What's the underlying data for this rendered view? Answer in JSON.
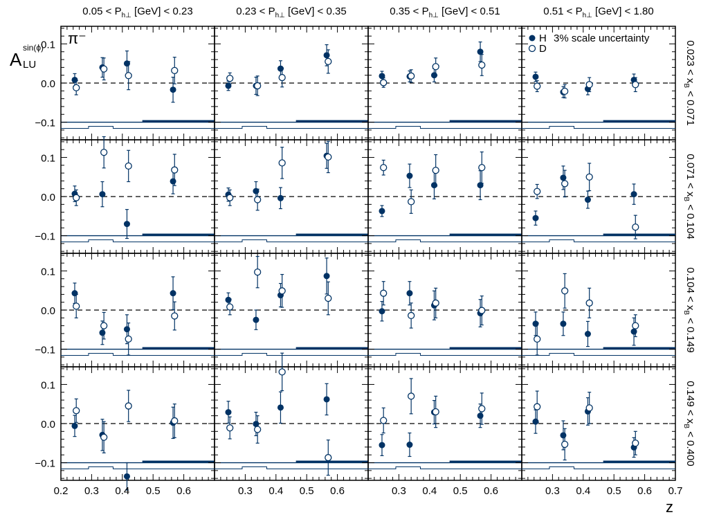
{
  "figure": {
    "hadron_label": "π⁻",
    "y_axis_title": "A",
    "y_axis_superscript": "sin(ϕ)",
    "y_axis_subscript": "LU",
    "x_axis_title": "z",
    "legend": {
      "h_label": "H",
      "d_label": "D",
      "scale_note": "3% scale uncertainty"
    },
    "colors": {
      "primary": "#003264"
    }
  },
  "chart_data": {
    "type": "scatter",
    "layout": "4x4 grid, shared axes",
    "xlim": [
      0.2,
      0.7
    ],
    "ylim": [
      -0.145,
      0.145
    ],
    "x_ticks": [
      "0.2",
      "0.3",
      "0.4",
      "0.5",
      "0.6",
      "0.7"
    ],
    "y_ticks": [
      "−0.1",
      "0.0",
      "0.1"
    ],
    "column_headers": [
      {
        "lo": "0.05",
        "hi": "0.23"
      },
      {
        "lo": "0.23",
        "hi": "0.35"
      },
      {
        "lo": "0.35",
        "hi": "0.51"
      },
      {
        "lo": "0.51",
        "hi": "1.80"
      }
    ],
    "row_headers": [
      {
        "lo": "0.023",
        "hi": "0.071"
      },
      {
        "lo": "0.071",
        "hi": "0.104"
      },
      {
        "lo": "0.104",
        "hi": "0.149"
      },
      {
        "lo": "0.149",
        "hi": "0.400"
      }
    ],
    "series_names": [
      "H",
      "D"
    ],
    "panels": [
      [
        {
          "H": [
            [
              0.245,
              0.008,
              0.016
            ],
            [
              0.335,
              0.04,
              0.025
            ],
            [
              0.415,
              0.05,
              0.032
            ],
            [
              0.565,
              -0.017,
              0.032
            ]
          ],
          "D": [
            [
              0.25,
              -0.012,
              0.018
            ],
            [
              0.34,
              0.036,
              0.028
            ],
            [
              0.42,
              0.019,
              0.036
            ],
            [
              0.57,
              0.032,
              0.034
            ]
          ]
        },
        {
          "H": [
            [
              0.245,
              -0.007,
              0.012
            ],
            [
              0.335,
              -0.007,
              0.022
            ],
            [
              0.415,
              0.037,
              0.02
            ],
            [
              0.565,
              0.071,
              0.027
            ]
          ],
          "D": [
            [
              0.25,
              0.012,
              0.014
            ],
            [
              0.34,
              -0.007,
              0.025
            ],
            [
              0.42,
              0.014,
              0.024
            ],
            [
              0.57,
              0.055,
              0.03
            ]
          ]
        },
        {
          "H": [
            [
              0.245,
              0.018,
              0.012
            ],
            [
              0.335,
              0.017,
              0.014
            ],
            [
              0.415,
              0.02,
              0.017
            ],
            [
              0.565,
              0.08,
              0.025
            ]
          ],
          "D": [
            [
              0.25,
              0.001,
              0.012
            ],
            [
              0.34,
              0.018,
              0.016
            ],
            [
              0.42,
              0.042,
              0.022
            ],
            [
              0.57,
              0.046,
              0.027
            ]
          ]
        },
        {
          "H": [
            [
              0.245,
              0.016,
              0.012
            ],
            [
              0.335,
              -0.023,
              0.014
            ],
            [
              0.415,
              -0.015,
              0.015
            ],
            [
              0.565,
              0.008,
              0.015
            ]
          ],
          "D": [
            [
              0.25,
              -0.008,
              0.014
            ],
            [
              0.34,
              -0.021,
              0.017
            ],
            [
              0.42,
              -0.004,
              0.018
            ],
            [
              0.57,
              -0.004,
              0.018
            ]
          ]
        }
      ],
      [
        {
          "H": [
            [
              0.245,
              0.007,
              0.02
            ],
            [
              0.335,
              0.006,
              0.032
            ],
            [
              0.415,
              -0.07,
              0.037
            ],
            [
              0.565,
              0.039,
              0.032
            ]
          ],
          "D": [
            [
              0.25,
              -0.003,
              0.02
            ],
            [
              0.34,
              0.113,
              0.04
            ],
            [
              0.42,
              0.078,
              0.04
            ],
            [
              0.57,
              0.068,
              0.04
            ]
          ]
        },
        {
          "H": [
            [
              0.245,
              0.005,
              0.017
            ],
            [
              0.335,
              0.014,
              0.024
            ],
            [
              0.415,
              -0.004,
              0.027
            ],
            [
              0.565,
              0.104,
              0.032
            ]
          ],
          "D": [
            [
              0.25,
              -0.003,
              0.02
            ],
            [
              0.34,
              -0.008,
              0.027
            ],
            [
              0.42,
              0.086,
              0.04
            ],
            [
              0.57,
              0.101,
              0.04
            ]
          ]
        },
        {
          "H": [
            [
              0.245,
              -0.037,
              0.014
            ],
            [
              0.335,
              0.053,
              0.03
            ],
            [
              0.415,
              0.029,
              0.035
            ],
            [
              0.565,
              0.029,
              0.037
            ]
          ],
          "D": [
            [
              0.25,
              0.074,
              0.019
            ],
            [
              0.34,
              -0.013,
              0.03
            ],
            [
              0.42,
              0.067,
              0.04
            ],
            [
              0.57,
              0.074,
              0.04
            ]
          ]
        },
        {
          "H": [
            [
              0.245,
              -0.055,
              0.018
            ],
            [
              0.335,
              0.048,
              0.03
            ],
            [
              0.415,
              -0.008,
              0.022
            ],
            [
              0.565,
              0.006,
              0.026
            ]
          ],
          "D": [
            [
              0.25,
              0.013,
              0.018
            ],
            [
              0.34,
              0.033,
              0.034
            ],
            [
              0.42,
              0.05,
              0.035
            ],
            [
              0.57,
              -0.078,
              0.03
            ]
          ]
        }
      ],
      [
        {
          "H": [
            [
              0.245,
              0.043,
              0.026
            ],
            [
              0.335,
              -0.058,
              0.03
            ],
            [
              0.415,
              -0.049,
              0.037
            ],
            [
              0.565,
              0.043,
              0.042
            ]
          ],
          "D": [
            [
              0.25,
              0.01,
              0.03
            ],
            [
              0.34,
              -0.04,
              0.034
            ],
            [
              0.42,
              -0.074,
              0.041
            ],
            [
              0.57,
              -0.015,
              0.036
            ]
          ]
        },
        {
          "H": [
            [
              0.245,
              0.026,
              0.018
            ],
            [
              0.335,
              -0.025,
              0.025
            ],
            [
              0.415,
              0.038,
              0.03
            ],
            [
              0.565,
              0.087,
              0.046
            ]
          ],
          "D": [
            [
              0.25,
              0.008,
              0.02
            ],
            [
              0.34,
              0.097,
              0.04
            ],
            [
              0.42,
              0.049,
              0.042
            ],
            [
              0.57,
              0.03,
              0.042
            ]
          ]
        },
        {
          "H": [
            [
              0.245,
              -0.003,
              0.025
            ],
            [
              0.335,
              0.043,
              0.03
            ],
            [
              0.415,
              0.012,
              0.037
            ],
            [
              0.565,
              -0.008,
              0.035
            ]
          ],
          "D": [
            [
              0.25,
              0.043,
              0.03
            ],
            [
              0.34,
              -0.014,
              0.032
            ],
            [
              0.42,
              0.018,
              0.038
            ],
            [
              0.57,
              -0.001,
              0.037
            ]
          ]
        },
        {
          "H": [
            [
              0.245,
              -0.035,
              0.03
            ],
            [
              0.335,
              -0.035,
              0.03
            ],
            [
              0.415,
              -0.061,
              0.032
            ],
            [
              0.565,
              -0.055,
              0.035
            ]
          ],
          "D": [
            [
              0.25,
              -0.074,
              0.041
            ],
            [
              0.34,
              0.049,
              0.044
            ],
            [
              0.42,
              0.018,
              0.038
            ],
            [
              0.57,
              -0.04,
              0.028
            ]
          ]
        }
      ],
      [
        {
          "H": [
            [
              0.245,
              -0.006,
              0.027
            ],
            [
              0.335,
              -0.029,
              0.04
            ],
            [
              0.415,
              -0.135,
              0.035
            ],
            [
              0.565,
              0.002,
              0.04
            ]
          ],
          "D": [
            [
              0.25,
              0.033,
              0.03
            ],
            [
              0.34,
              -0.035,
              0.04
            ],
            [
              0.42,
              0.045,
              0.04
            ],
            [
              0.57,
              0.007,
              0.043
            ]
          ]
        },
        {
          "H": [
            [
              0.245,
              0.029,
              0.028
            ],
            [
              0.335,
              -0.001,
              0.03
            ],
            [
              0.415,
              0.041,
              0.04
            ],
            [
              0.565,
              0.062,
              0.04
            ]
          ],
          "D": [
            [
              0.25,
              -0.011,
              0.028
            ],
            [
              0.34,
              -0.015,
              0.035
            ],
            [
              0.42,
              0.132,
              0.048
            ],
            [
              0.57,
              -0.087,
              0.045
            ]
          ]
        },
        {
          "H": [
            [
              0.245,
              -0.055,
              0.027
            ],
            [
              0.335,
              -0.054,
              0.03
            ],
            [
              0.415,
              0.029,
              0.03
            ],
            [
              0.565,
              0.02,
              0.03
            ]
          ],
          "D": [
            [
              0.25,
              0.008,
              0.032
            ],
            [
              0.34,
              0.07,
              0.045
            ],
            [
              0.42,
              0.03,
              0.04
            ],
            [
              0.57,
              0.038,
              0.04
            ]
          ]
        },
        {
          "H": [
            [
              0.245,
              0.005,
              0.03
            ],
            [
              0.335,
              -0.03,
              0.037
            ],
            [
              0.415,
              0.031,
              0.035
            ],
            [
              0.565,
              -0.061,
              0.025
            ]
          ],
          "D": [
            [
              0.25,
              0.043,
              0.04
            ],
            [
              0.34,
              -0.053,
              0.04
            ],
            [
              0.42,
              0.04,
              0.04
            ],
            [
              0.57,
              -0.05,
              0.03
            ]
          ]
        }
      ]
    ]
  }
}
